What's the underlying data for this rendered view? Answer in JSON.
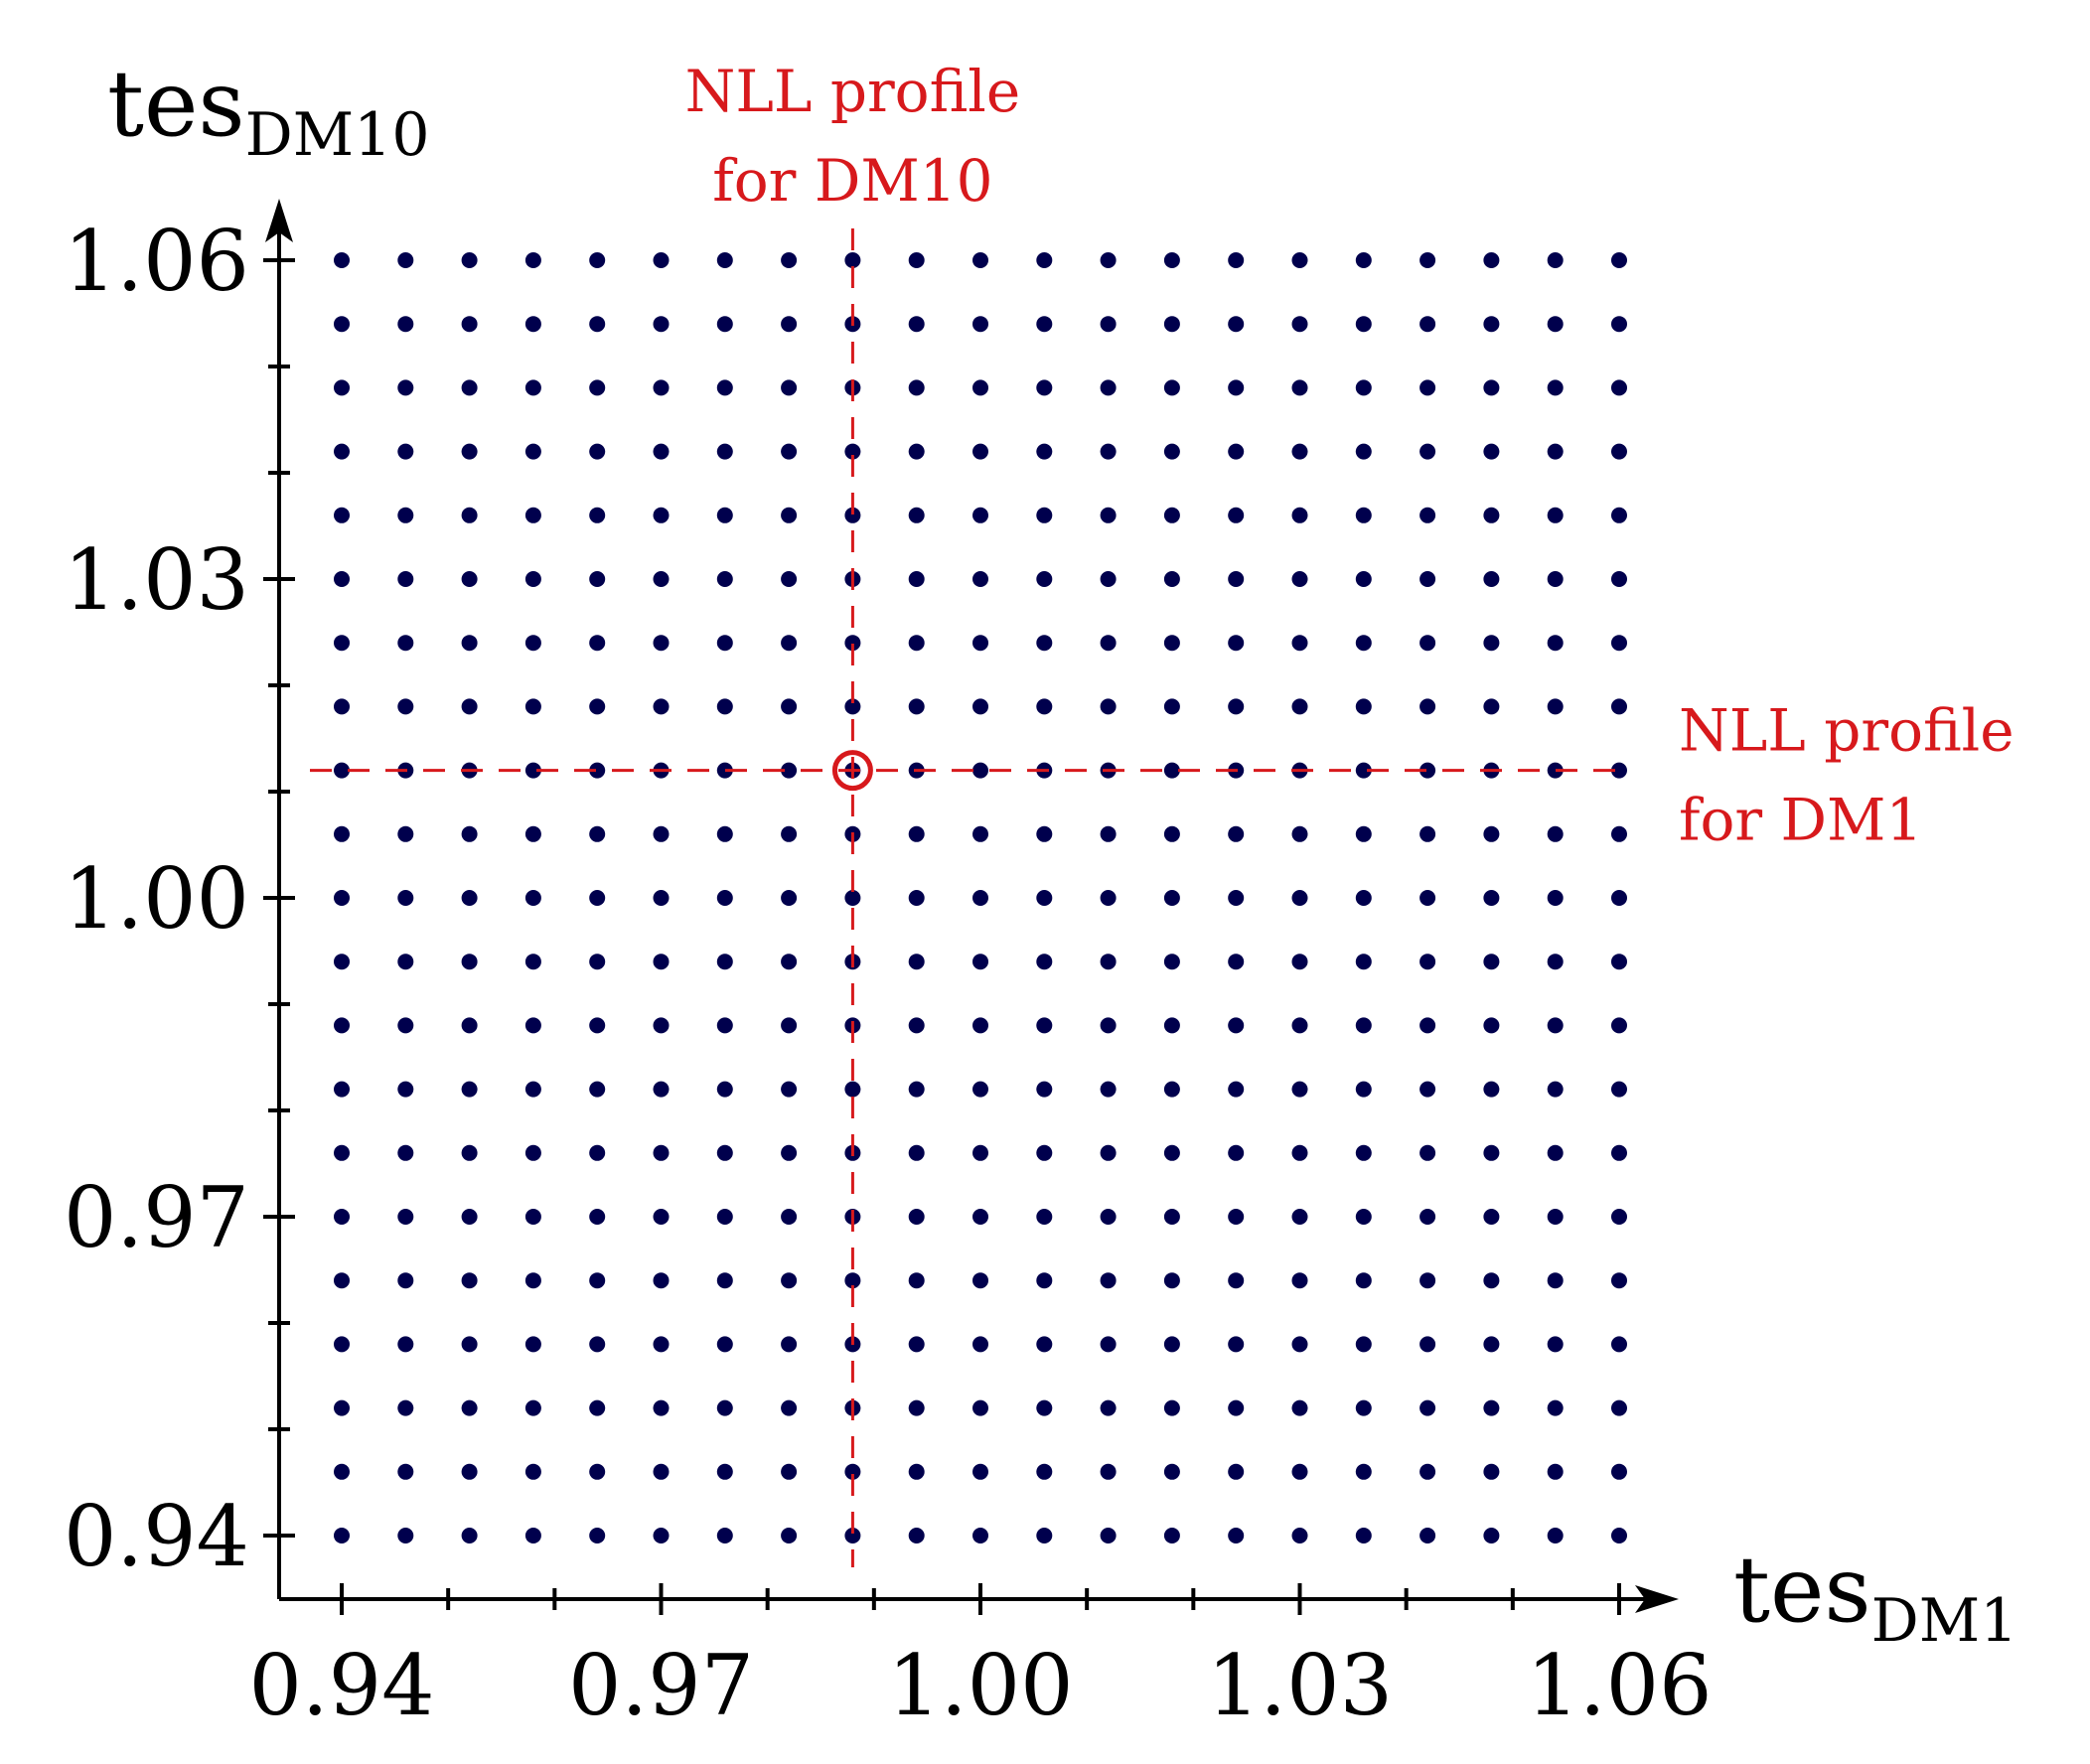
{
  "chart_data": {
    "type": "scatter",
    "title": "",
    "x_axis": {
      "label_main": "tes",
      "label_sub": "DM1",
      "range": [
        0.94,
        1.06
      ],
      "major_ticks": [
        0.94,
        0.97,
        1.0,
        1.03,
        1.06
      ],
      "major_tick_labels": [
        "0.94",
        "0.97",
        "1.00",
        "1.03",
        "1.06"
      ],
      "minor_ticks": [
        0.95,
        0.96,
        0.98,
        0.99,
        1.01,
        1.02,
        1.04,
        1.05
      ]
    },
    "y_axis": {
      "label_main": "tes",
      "label_sub": "DM10",
      "range": [
        0.94,
        1.06
      ],
      "major_ticks": [
        0.94,
        0.97,
        1.0,
        1.03,
        1.06
      ],
      "major_tick_labels": [
        "0.94",
        "0.97",
        "1.00",
        "1.03",
        "1.06"
      ],
      "minor_ticks": [
        0.95,
        0.96,
        0.98,
        0.99,
        1.01,
        1.02,
        1.04,
        1.05
      ]
    },
    "grid": {
      "x_values": [
        0.94,
        0.946,
        0.952,
        0.958,
        0.964,
        0.97,
        0.976,
        0.982,
        0.988,
        0.994,
        1.0,
        1.006,
        1.012,
        1.018,
        1.024,
        1.03,
        1.036,
        1.042,
        1.048,
        1.054,
        1.06
      ],
      "y_values": [
        0.94,
        0.946,
        0.952,
        0.958,
        0.964,
        0.97,
        0.976,
        0.982,
        0.988,
        0.994,
        1.0,
        1.006,
        1.012,
        1.018,
        1.024,
        1.03,
        1.036,
        1.042,
        1.048,
        1.054,
        1.06
      ],
      "point_color": "#00004d"
    },
    "highlight": {
      "x": 0.988,
      "y": 1.012,
      "color": "#d7191c"
    },
    "profiles": [
      {
        "orientation": "vertical",
        "x": 0.988,
        "label_lines": [
          "NLL profile",
          "for DM10"
        ],
        "color": "#d7191c"
      },
      {
        "orientation": "horizontal",
        "y": 1.012,
        "label_lines": [
          "NLL profile",
          "for DM1"
        ],
        "color": "#d7191c"
      }
    ],
    "grid_lines": false,
    "legend": "none"
  }
}
